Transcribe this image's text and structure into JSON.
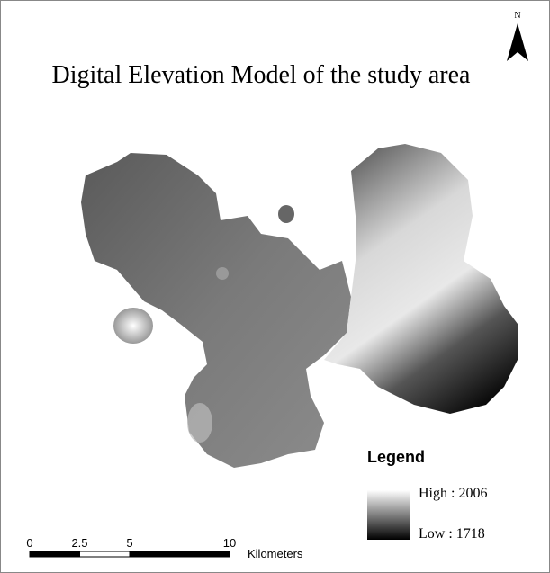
{
  "title": "Digital Elevation Model of the study area",
  "north_arrow": {
    "label": "N"
  },
  "legend": {
    "title": "Legend",
    "high_label": "High : 2006",
    "low_label": "Low : 1718"
  },
  "scale_bar": {
    "ticks": [
      0,
      2.5,
      5,
      10
    ],
    "unit": "Kilometers"
  }
}
